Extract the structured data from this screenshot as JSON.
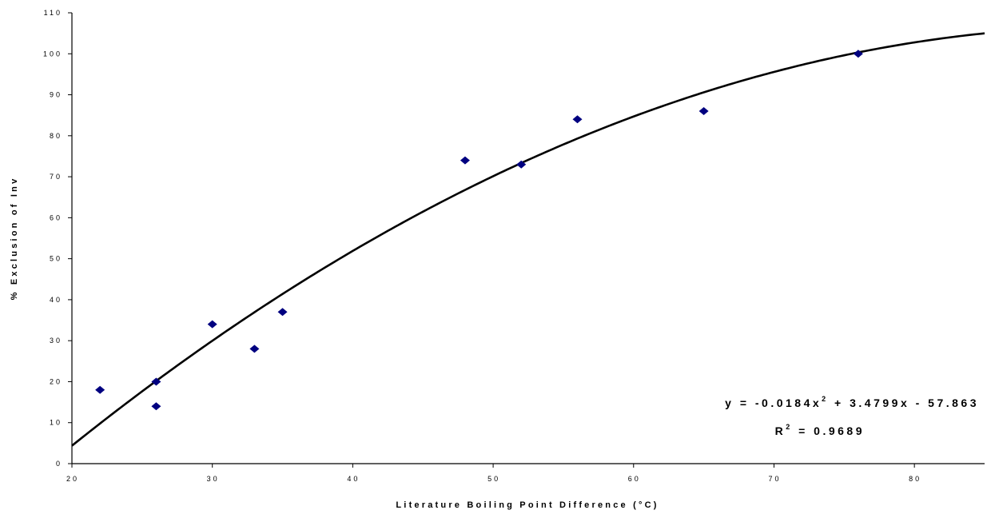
{
  "chart_data": {
    "type": "scatter",
    "xlabel": "Literature Boiling Point Difference (°C)",
    "ylabel": "% Exclusion of Inv",
    "xlim": [
      20,
      85
    ],
    "ylim": [
      0,
      110
    ],
    "x_ticks": [
      20,
      30,
      40,
      50,
      60,
      70,
      80
    ],
    "y_ticks": [
      0,
      10,
      20,
      30,
      40,
      50,
      60,
      70,
      80,
      90,
      100,
      110
    ],
    "grid": false,
    "legend": "none",
    "marker_color": "#000080",
    "line_color": "#000000",
    "series": [
      {
        "x": [
          22,
          26,
          26,
          30,
          33,
          35,
          48,
          52,
          56,
          65,
          76
        ],
        "y": [
          18,
          20,
          14,
          34,
          28,
          37,
          74,
          73,
          84,
          86,
          100
        ]
      }
    ],
    "trendline": {
      "type": "polynomial",
      "degree": 2,
      "coefficients": [
        -57.863,
        3.4799,
        -0.0184
      ]
    },
    "annotations": {
      "equation": {
        "lhs": "y = -0.0184x",
        "exp": "2",
        "rhs": " + 3.4799x - 57.863"
      },
      "r_squared": {
        "lhs": "R",
        "exp": "2",
        "rhs": " = 0.9689"
      }
    }
  }
}
